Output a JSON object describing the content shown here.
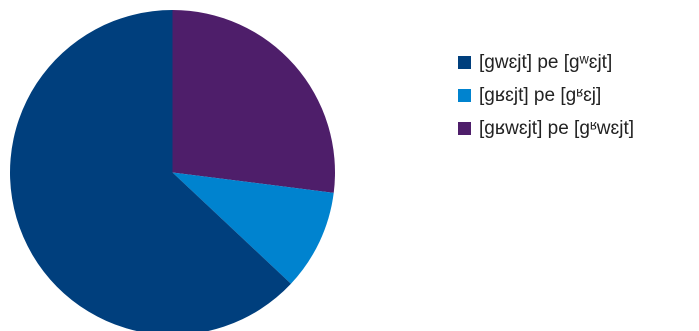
{
  "chart_data": {
    "type": "pie",
    "title": "",
    "series": [
      {
        "values": [
          63,
          10,
          27
        ]
      }
    ],
    "categories": [
      "[gwɛjt] pe [gʷɛjt]",
      "[gʁɛjt] pe [gʶɛj]",
      "[gʁwɛjt] pe [gʶwɛjt]"
    ],
    "colors": [
      "#003f7d",
      "#0083cf",
      "#4e1e6a"
    ],
    "legend_placement": "right"
  }
}
